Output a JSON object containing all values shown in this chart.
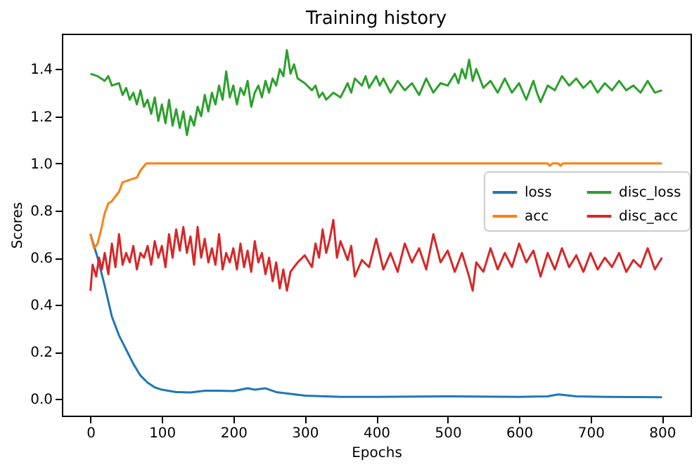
{
  "chart_data": {
    "type": "line",
    "title": "Training history",
    "xlabel": "Epochs",
    "ylabel": "Scores",
    "xlim": [
      -40,
      840
    ],
    "xticks": [
      0,
      100,
      200,
      300,
      400,
      500,
      600,
      700,
      800
    ],
    "ylim": [
      -0.07,
      1.55
    ],
    "yticks": [
      {
        "value": 0,
        "label": "0.0"
      },
      0.2,
      0.4,
      0.6,
      0.8,
      {
        "value": 1,
        "label": "1.0"
      },
      1.2,
      1.4
    ],
    "legend": "right",
    "grid": false,
    "line_style": "solid",
    "marker": "none",
    "series": [
      {
        "name": "loss",
        "color": "#1f77b4",
        "x": [
          0,
          5,
          10,
          20,
          30,
          40,
          50,
          60,
          70,
          80,
          90,
          100,
          120,
          140,
          160,
          180,
          200,
          220,
          230,
          245,
          260,
          300,
          350,
          400,
          500,
          600,
          640,
          655,
          680,
          720,
          800
        ],
        "values": [
          0.7,
          0.65,
          0.6,
          0.48,
          0.35,
          0.27,
          0.21,
          0.15,
          0.1,
          0.07,
          0.05,
          0.04,
          0.03,
          0.028,
          0.036,
          0.036,
          0.034,
          0.046,
          0.04,
          0.046,
          0.03,
          0.015,
          0.01,
          0.01,
          0.012,
          0.01,
          0.012,
          0.02,
          0.012,
          0.01,
          0.008
        ]
      },
      {
        "name": "acc",
        "color": "#ff7f0e",
        "x": [
          0,
          5,
          10,
          15,
          20,
          25,
          30,
          40,
          45,
          55,
          65,
          70,
          78,
          640,
          643,
          647,
          655,
          658,
          661,
          800
        ],
        "values": [
          0.7,
          0.64,
          0.66,
          0.72,
          0.79,
          0.83,
          0.84,
          0.88,
          0.92,
          0.93,
          0.94,
          0.97,
          1.0,
          1.0,
          0.99,
          1.0,
          1.0,
          0.99,
          1.0,
          1.0
        ]
      },
      {
        "name": "disc_loss",
        "color": "#2ca02c",
        "x": [
          0,
          10,
          20,
          25,
          30,
          40,
          45,
          50,
          55,
          60,
          65,
          70,
          75,
          80,
          85,
          90,
          95,
          100,
          105,
          110,
          115,
          120,
          125,
          130,
          135,
          140,
          145,
          150,
          155,
          160,
          165,
          170,
          175,
          180,
          185,
          190,
          195,
          200,
          205,
          210,
          215,
          220,
          225,
          230,
          235,
          240,
          245,
          250,
          255,
          260,
          265,
          270,
          275,
          280,
          285,
          290,
          300,
          310,
          315,
          320,
          325,
          330,
          340,
          350,
          355,
          360,
          365,
          370,
          380,
          385,
          390,
          400,
          405,
          410,
          420,
          430,
          440,
          450,
          460,
          470,
          480,
          490,
          500,
          510,
          515,
          520,
          525,
          530,
          535,
          540,
          550,
          560,
          570,
          580,
          590,
          600,
          610,
          620,
          625,
          630,
          640,
          650,
          660,
          670,
          680,
          690,
          700,
          710,
          720,
          730,
          740,
          750,
          760,
          770,
          780,
          790,
          800
        ],
        "values": [
          1.38,
          1.37,
          1.35,
          1.37,
          1.33,
          1.34,
          1.29,
          1.32,
          1.27,
          1.3,
          1.25,
          1.31,
          1.24,
          1.27,
          1.21,
          1.28,
          1.18,
          1.25,
          1.17,
          1.27,
          1.16,
          1.23,
          1.15,
          1.22,
          1.12,
          1.2,
          1.16,
          1.24,
          1.2,
          1.29,
          1.22,
          1.3,
          1.25,
          1.33,
          1.27,
          1.39,
          1.28,
          1.33,
          1.25,
          1.32,
          1.29,
          1.35,
          1.24,
          1.3,
          1.33,
          1.28,
          1.35,
          1.3,
          1.36,
          1.33,
          1.4,
          1.37,
          1.48,
          1.38,
          1.42,
          1.36,
          1.34,
          1.31,
          1.33,
          1.28,
          1.3,
          1.27,
          1.3,
          1.28,
          1.31,
          1.34,
          1.3,
          1.36,
          1.33,
          1.37,
          1.32,
          1.37,
          1.33,
          1.36,
          1.3,
          1.35,
          1.31,
          1.34,
          1.29,
          1.36,
          1.3,
          1.34,
          1.33,
          1.38,
          1.34,
          1.4,
          1.36,
          1.44,
          1.35,
          1.4,
          1.32,
          1.35,
          1.3,
          1.36,
          1.3,
          1.34,
          1.27,
          1.35,
          1.3,
          1.26,
          1.33,
          1.31,
          1.37,
          1.33,
          1.36,
          1.32,
          1.35,
          1.3,
          1.34,
          1.31,
          1.35,
          1.31,
          1.33,
          1.3,
          1.35,
          1.3,
          1.31
        ]
      },
      {
        "name": "disc_acc",
        "color": "#d62728",
        "x": [
          0,
          3,
          8,
          12,
          16,
          20,
          25,
          30,
          35,
          40,
          45,
          50,
          55,
          60,
          65,
          70,
          75,
          80,
          85,
          90,
          95,
          100,
          105,
          110,
          115,
          120,
          125,
          130,
          135,
          140,
          145,
          150,
          155,
          160,
          165,
          170,
          175,
          180,
          185,
          190,
          195,
          200,
          205,
          210,
          215,
          220,
          225,
          230,
          235,
          240,
          245,
          250,
          255,
          260,
          265,
          270,
          275,
          280,
          290,
          300,
          310,
          315,
          320,
          325,
          330,
          335,
          340,
          345,
          350,
          360,
          365,
          370,
          380,
          390,
          400,
          410,
          420,
          430,
          440,
          450,
          460,
          470,
          480,
          490,
          500,
          510,
          520,
          530,
          535,
          540,
          550,
          560,
          570,
          580,
          590,
          600,
          610,
          620,
          630,
          640,
          650,
          660,
          670,
          680,
          690,
          700,
          710,
          720,
          730,
          740,
          750,
          760,
          770,
          780,
          790,
          800
        ],
        "values": [
          0.46,
          0.57,
          0.52,
          0.6,
          0.55,
          0.62,
          0.53,
          0.66,
          0.56,
          0.7,
          0.57,
          0.62,
          0.58,
          0.65,
          0.55,
          0.62,
          0.6,
          0.65,
          0.57,
          0.67,
          0.6,
          0.65,
          0.56,
          0.7,
          0.6,
          0.72,
          0.63,
          0.73,
          0.62,
          0.69,
          0.57,
          0.73,
          0.6,
          0.68,
          0.58,
          0.64,
          0.57,
          0.7,
          0.55,
          0.62,
          0.58,
          0.64,
          0.55,
          0.66,
          0.56,
          0.63,
          0.54,
          0.67,
          0.58,
          0.62,
          0.53,
          0.6,
          0.5,
          0.58,
          0.47,
          0.55,
          0.46,
          0.54,
          0.58,
          0.61,
          0.56,
          0.66,
          0.6,
          0.72,
          0.62,
          0.68,
          0.76,
          0.6,
          0.67,
          0.59,
          0.65,
          0.52,
          0.59,
          0.56,
          0.68,
          0.55,
          0.62,
          0.54,
          0.66,
          0.58,
          0.64,
          0.55,
          0.7,
          0.58,
          0.63,
          0.54,
          0.62,
          0.52,
          0.46,
          0.58,
          0.54,
          0.64,
          0.55,
          0.62,
          0.56,
          0.66,
          0.58,
          0.63,
          0.52,
          0.62,
          0.55,
          0.64,
          0.56,
          0.61,
          0.54,
          0.62,
          0.55,
          0.6,
          0.56,
          0.62,
          0.54,
          0.59,
          0.56,
          0.64,
          0.55,
          0.6
        ]
      }
    ]
  }
}
